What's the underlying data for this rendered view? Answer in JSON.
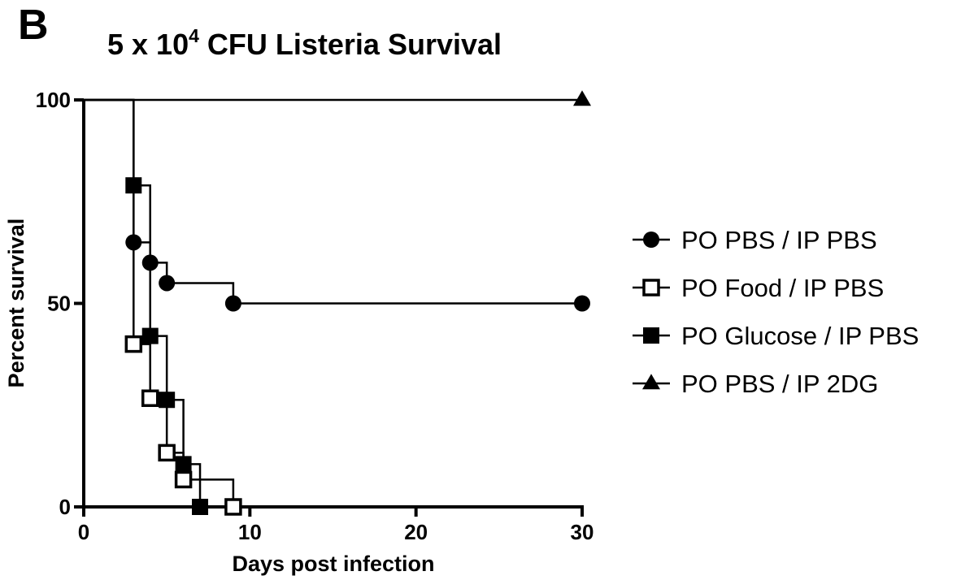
{
  "panel_label": "B",
  "chart_data": {
    "type": "line",
    "title": "5 x 10",
    "title_superscript": "4",
    "title_suffix": " CFU Listeria Survival",
    "xlabel": "Days post infection",
    "ylabel": "Percent survival",
    "xlim": [
      0,
      30
    ],
    "ylim": [
      0,
      100
    ],
    "x_ticks": [
      0,
      10,
      20,
      30
    ],
    "y_ticks": [
      0,
      50,
      100
    ],
    "grid": false,
    "legend_position": "right",
    "series": [
      {
        "name": "PO PBS / IP PBS",
        "marker": "circle",
        "steps": [
          [
            0,
            100
          ],
          [
            3,
            65
          ],
          [
            4,
            60
          ],
          [
            5,
            55
          ],
          [
            9,
            50
          ],
          [
            30,
            50
          ]
        ],
        "markers": [
          [
            3,
            65
          ],
          [
            4,
            60
          ],
          [
            5,
            55
          ],
          [
            9,
            50
          ],
          [
            30,
            50
          ]
        ]
      },
      {
        "name": "PO Food / IP PBS",
        "marker": "open-square",
        "steps": [
          [
            0,
            100
          ],
          [
            3,
            40
          ],
          [
            4,
            26.7
          ],
          [
            5,
            13.3
          ],
          [
            6,
            6.7
          ],
          [
            9,
            0
          ]
        ],
        "markers": [
          [
            3,
            40
          ],
          [
            4,
            26.7
          ],
          [
            5,
            13.3
          ],
          [
            6,
            6.7
          ],
          [
            9,
            0
          ]
        ]
      },
      {
        "name": "PO Glucose / IP PBS",
        "marker": "filled-square",
        "steps": [
          [
            0,
            100
          ],
          [
            3,
            79
          ],
          [
            4,
            42
          ],
          [
            5,
            26.3
          ],
          [
            6,
            10.5
          ],
          [
            7,
            0
          ]
        ],
        "markers": [
          [
            3,
            79
          ],
          [
            4,
            42
          ],
          [
            5,
            26.3
          ],
          [
            6,
            10.5
          ],
          [
            7,
            0
          ]
        ]
      },
      {
        "name": "PO PBS / IP 2DG",
        "marker": "triangle",
        "steps": [
          [
            0,
            100
          ],
          [
            30,
            100
          ]
        ],
        "markers": [
          [
            30,
            100
          ]
        ]
      }
    ]
  }
}
